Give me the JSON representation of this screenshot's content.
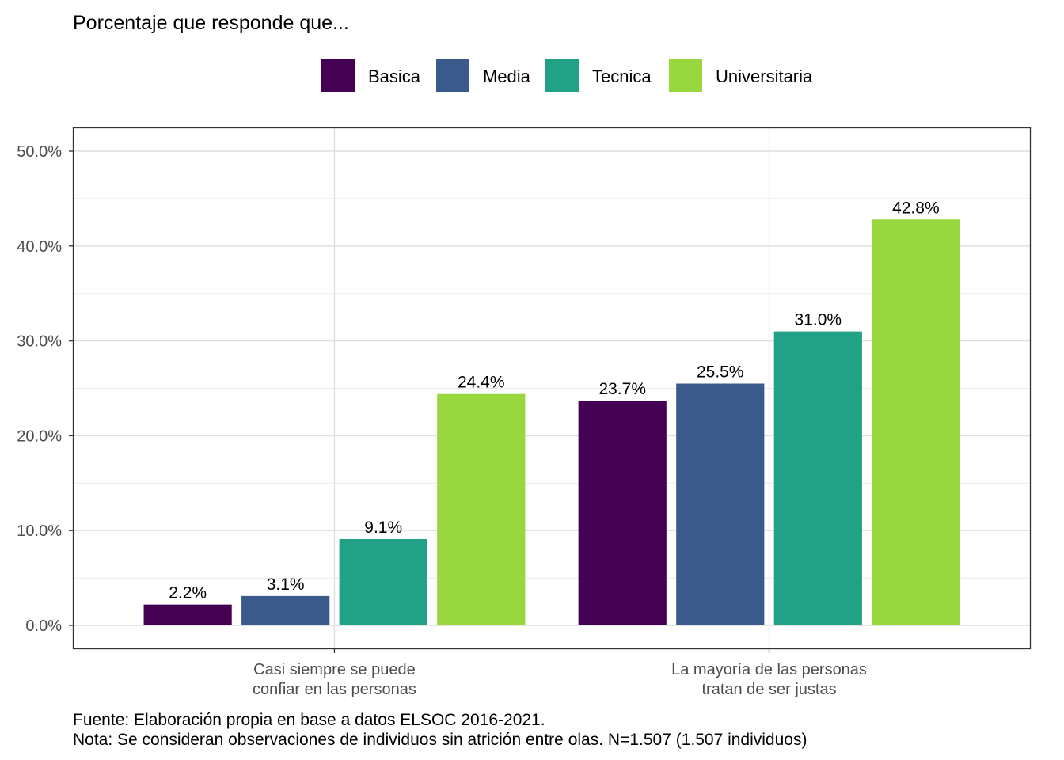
{
  "chart_data": {
    "type": "bar",
    "title": "Porcentaje que responde que...",
    "categories": [
      [
        "Casi siempre se puede",
        "confiar en las personas"
      ],
      [
        "La mayoría de las personas",
        "tratan de ser justas"
      ]
    ],
    "series": [
      {
        "name": "Basica",
        "color": "#440154",
        "values": [
          2.2,
          23.7
        ],
        "labels": [
          "2.2%",
          "23.7%"
        ]
      },
      {
        "name": "Media",
        "color": "#3B5A8C",
        "values": [
          3.1,
          25.5
        ],
        "labels": [
          "3.1%",
          "25.5%"
        ]
      },
      {
        "name": "Tecnica",
        "color": "#21A287",
        "values": [
          9.1,
          31.0
        ],
        "labels": [
          "9.1%",
          "31.0%"
        ]
      },
      {
        "name": "Universitaria",
        "color": "#98D83E",
        "values": [
          24.4,
          42.8
        ],
        "labels": [
          "24.4%",
          "42.8%"
        ]
      }
    ],
    "ylim": [
      0,
      50
    ],
    "yticks": [
      0,
      10,
      20,
      30,
      40,
      50
    ],
    "ytick_labels": [
      "0.0%",
      "10.0%",
      "20.0%",
      "30.0%",
      "40.0%",
      "50.0%"
    ],
    "legend_position": "top",
    "grid": true
  },
  "caption": {
    "source": "Fuente: Elaboración propia en base a datos ELSOC 2016-2021.",
    "note": "Nota: Se consideran observaciones de individuos sin atrición entre olas. N=1.507 (1.507 individuos)"
  }
}
